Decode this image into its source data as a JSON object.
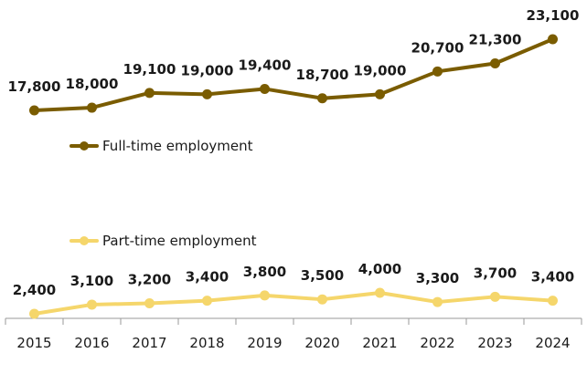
{
  "chart_data": {
    "type": "line",
    "categories": [
      "2015",
      "2016",
      "2017",
      "2018",
      "2019",
      "2020",
      "2021",
      "2022",
      "2023",
      "2024"
    ],
    "series": [
      {
        "name": "Full-time employment",
        "color": "#7a5c00",
        "values": [
          17800,
          18000,
          19100,
          19000,
          19400,
          18700,
          19000,
          20700,
          21300,
          23100
        ],
        "labels": [
          "17,800",
          "18,000",
          "19,100",
          "19,000",
          "19,400",
          "18,700",
          "19,000",
          "20,700",
          "21,300",
          "23,100"
        ]
      },
      {
        "name": "Part-time employment",
        "color": "#f5d66b",
        "values": [
          2400,
          3100,
          3200,
          3400,
          3800,
          3500,
          4000,
          3300,
          3700,
          3400
        ],
        "labels": [
          "2,400",
          "3,100",
          "3,200",
          "3,400",
          "3,800",
          "3,500",
          "4,000",
          "3,300",
          "3,700",
          "3,400"
        ]
      }
    ],
    "legend": {
      "entries": [
        "Full-time employment",
        "Part-time employment"
      ],
      "placement": "inline-left"
    },
    "grid": false,
    "title": "",
    "xlabel": "",
    "ylabel": ""
  }
}
